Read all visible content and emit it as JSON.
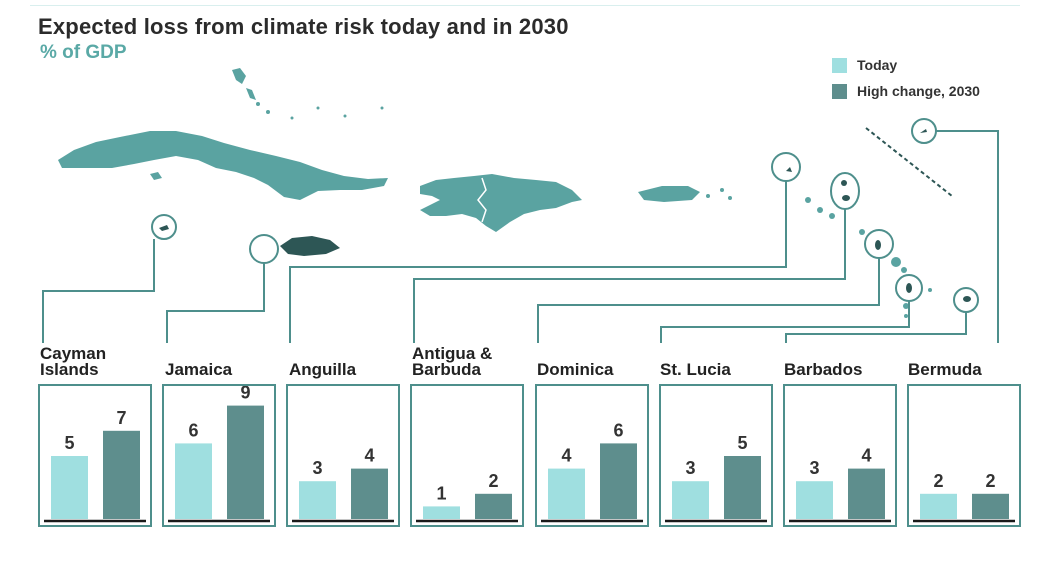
{
  "title": "Expected loss from climate risk today and in 2030",
  "subtitle": "% of GDP",
  "legend": [
    {
      "label": "Today",
      "color": "#9fdfe0"
    },
    {
      "label": "High change, 2030",
      "color": "#5e8e8d"
    }
  ],
  "chart_data": {
    "type": "bar",
    "title": "Expected loss from climate risk today and in 2030",
    "subtitle": "% of GDP",
    "categories": [
      "Cayman Islands",
      "Jamaica",
      "Anguilla",
      "Antigua & Barbuda",
      "Dominica",
      "St. Lucia",
      "Barbados",
      "Bermuda"
    ],
    "category_labels": [
      "Cayman\nIslands",
      "Jamaica",
      "Anguilla",
      "Antigua &\nBarbuda",
      "Dominica",
      "St. Lucia",
      "Barbados",
      "Bermuda"
    ],
    "series": [
      {
        "name": "Today",
        "color": "#9fdfe0",
        "values": [
          5,
          6,
          3,
          1,
          4,
          3,
          3,
          2
        ]
      },
      {
        "name": "High change, 2030",
        "color": "#5e8e8d",
        "values": [
          7,
          9,
          4,
          2,
          6,
          5,
          4,
          2
        ]
      }
    ],
    "ylim": [
      0,
      9
    ],
    "legend_position": "top-right",
    "grid": false
  }
}
